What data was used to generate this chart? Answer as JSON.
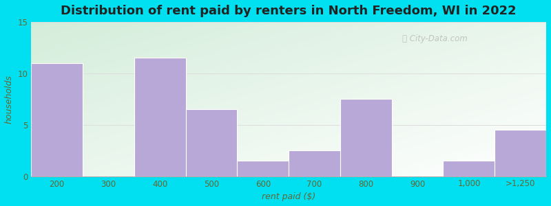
{
  "categories": [
    "200",
    "300",
    "400",
    "500",
    "600",
    "700",
    "800",
    "900",
    "1,000",
    ">1,250"
  ],
  "values": [
    11.0,
    0,
    11.5,
    6.5,
    1.5,
    2.5,
    7.5,
    0,
    1.5,
    4.5
  ],
  "bar_color": "#b8a8d8",
  "bar_edgecolor": "#b8a8d8",
  "title": "Distribution of rent paid by renters in North Freedom, WI in 2022",
  "xlabel": "rent paid ($)",
  "ylabel": "households",
  "ylim": [
    0,
    15
  ],
  "yticks": [
    0,
    5,
    10,
    15
  ],
  "title_fontsize": 13,
  "axis_label_fontsize": 9,
  "tick_fontsize": 8.5,
  "watermark_text": "Ⓜ City-Data.com",
  "outer_bg": "#00e0f0",
  "label_color": "#666633"
}
